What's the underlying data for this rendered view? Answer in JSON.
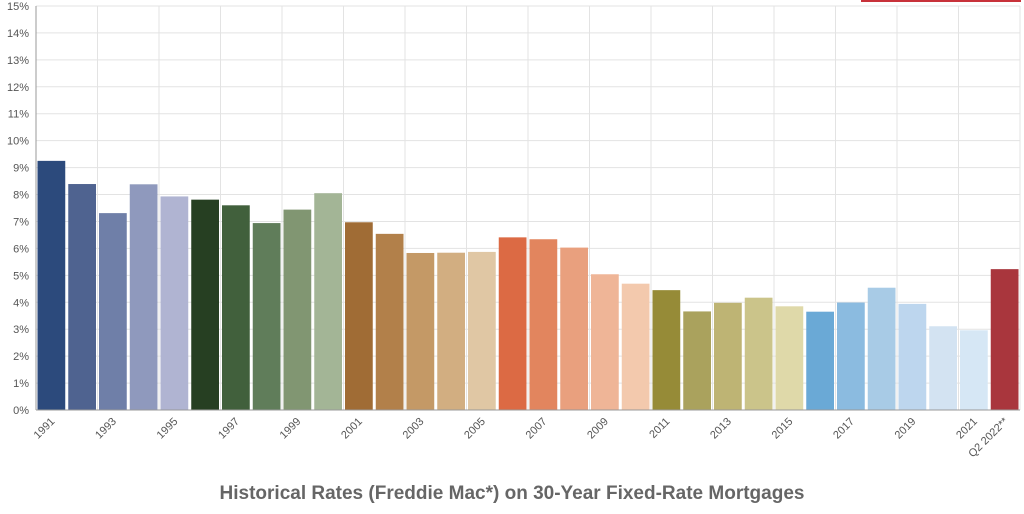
{
  "chart_data": {
    "type": "bar",
    "title": "Historical Rates (Freddie Mac*) on 30-Year Fixed-Rate Mortgages",
    "xlabel": "",
    "ylabel": "",
    "ylim": [
      0,
      15
    ],
    "y_ticks": [
      "0%",
      "1%",
      "2%",
      "3%",
      "4%",
      "5%",
      "6%",
      "7%",
      "8%",
      "9%",
      "10%",
      "11%",
      "12%",
      "13%",
      "14%",
      "15%"
    ],
    "grid": true,
    "legend": "none",
    "categories": [
      "1991",
      "1992",
      "1993",
      "1994",
      "1995",
      "1996",
      "1997",
      "1998",
      "1999",
      "2000",
      "2001",
      "2002",
      "2003",
      "2004",
      "2005",
      "2006",
      "2007",
      "2008",
      "2009",
      "2010",
      "2011",
      "2012",
      "2013",
      "2014",
      "2015",
      "2016",
      "2017",
      "2018",
      "2019",
      "2020",
      "2021",
      "Q2 2022**"
    ],
    "x_tick_labels": [
      "1991",
      "",
      "1993",
      "",
      "1995",
      "",
      "1997",
      "",
      "1999",
      "",
      "2001",
      "",
      "2003",
      "",
      "2005",
      "",
      "2007",
      "",
      "2009",
      "",
      "2011",
      "",
      "2013",
      "",
      "2015",
      "",
      "2017",
      "",
      "2019",
      "",
      "2021",
      "Q2 2022**"
    ],
    "values": [
      9.25,
      8.39,
      7.31,
      8.38,
      7.93,
      7.81,
      7.6,
      6.94,
      7.44,
      8.05,
      6.97,
      6.54,
      5.83,
      5.84,
      5.87,
      6.41,
      6.34,
      6.03,
      5.04,
      4.69,
      4.45,
      3.66,
      3.98,
      4.17,
      3.85,
      3.65,
      3.99,
      4.54,
      3.94,
      3.11,
      2.96,
      5.23
    ],
    "colors": [
      "#2c4a7c",
      "#4f6390",
      "#6f7fa8",
      "#8f99bd",
      "#b0b4d2",
      "#263f22",
      "#41603c",
      "#607d5a",
      "#819672",
      "#a3b596",
      "#a06c35",
      "#b2804a",
      "#c49966",
      "#d2ae81",
      "#e0c7a4",
      "#dc6a44",
      "#e2855e",
      "#e9a07e",
      "#efb597",
      "#f3c9ad",
      "#968b37",
      "#aaa25d",
      "#beb474",
      "#cbc48a",
      "#dfd9a9",
      "#6aa9d6",
      "#8bbbe0",
      "#a8cbe6",
      "#bdd6ee",
      "#d3e3f2",
      "#d6e7f5",
      "#a9363d"
    ]
  },
  "accent_color": "#c8323a"
}
